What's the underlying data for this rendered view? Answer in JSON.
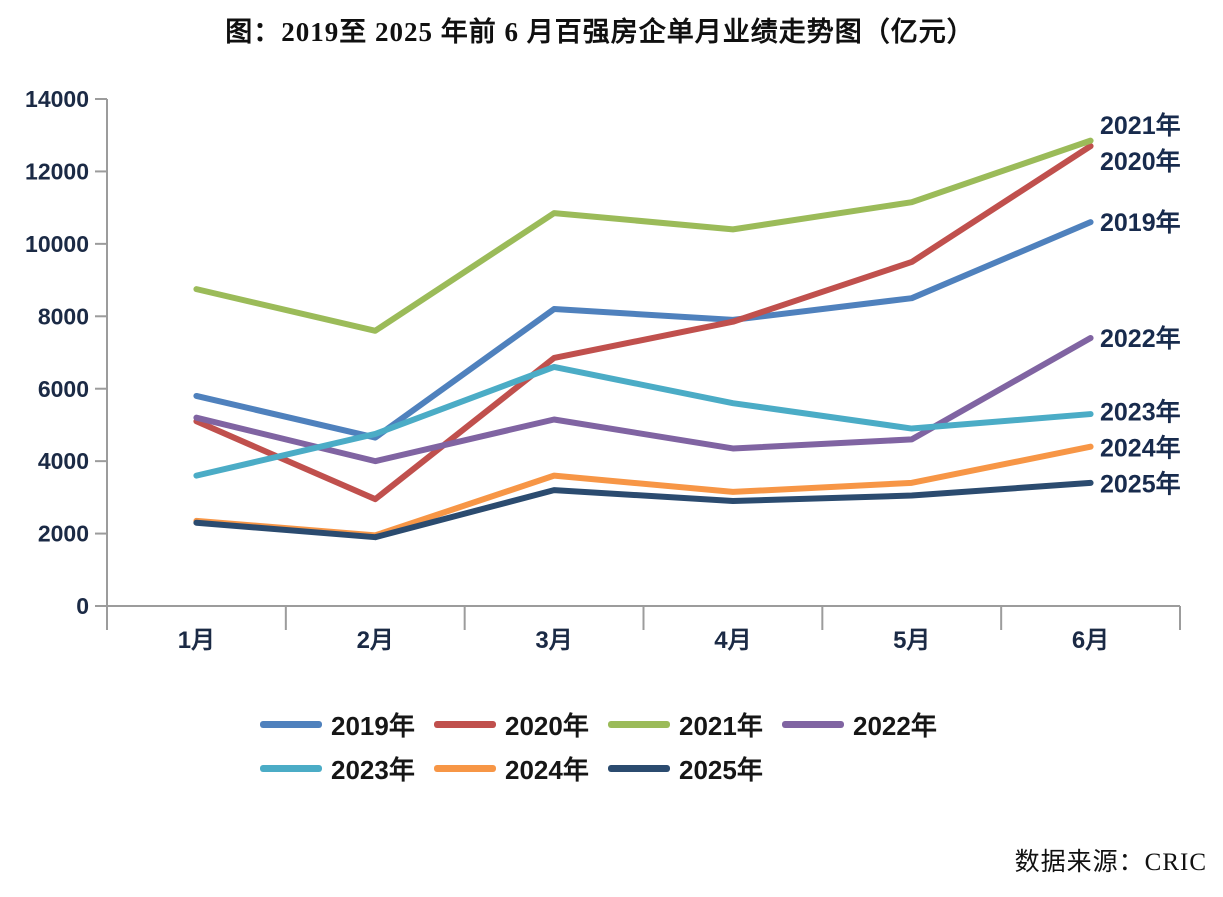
{
  "title": "图：2019至 2025 年前 6 月百强房企单月业绩走势图（亿元）",
  "source_note": "数据来源：CRIC",
  "chart_data": {
    "type": "line",
    "title": "图：2019至 2025 年前 6 月百强房企单月业绩走势图（亿元）",
    "xlabel": "",
    "ylabel": "",
    "categories": [
      "1月",
      "2月",
      "3月",
      "4月",
      "5月",
      "6月"
    ],
    "series": [
      {
        "name": "2019年",
        "color": "#4f81bd",
        "values": [
          5800,
          4650,
          8200,
          7900,
          8500,
          10600
        ]
      },
      {
        "name": "2020年",
        "color": "#c0504d",
        "values": [
          5100,
          2950,
          6850,
          7850,
          9500,
          12700
        ]
      },
      {
        "name": "2021年",
        "color": "#9bbb59",
        "values": [
          8750,
          7600,
          10850,
          10400,
          11150,
          12850
        ]
      },
      {
        "name": "2022年",
        "color": "#8064a2",
        "values": [
          5200,
          4000,
          5150,
          4350,
          4600,
          7400
        ]
      },
      {
        "name": "2023年",
        "color": "#4bacc6",
        "values": [
          3600,
          4750,
          6600,
          5600,
          4900,
          5300
        ]
      },
      {
        "name": "2024年",
        "color": "#f79646",
        "values": [
          2350,
          1950,
          3600,
          3150,
          3400,
          4400
        ]
      },
      {
        "name": "2025年",
        "color": "#2b4b6f",
        "values": [
          2300,
          1900,
          3200,
          2900,
          3050,
          3400
        ]
      }
    ],
    "ylim": [
      0,
      14000
    ],
    "yticks": [
      0,
      2000,
      4000,
      6000,
      8000,
      10000,
      12000,
      14000
    ],
    "grid": false,
    "legend_position": "bottom",
    "series_end_labels": [
      "2021年",
      "2020年",
      "2019年",
      "2022年",
      "2023年",
      "2024年",
      "2025年"
    ],
    "axis_color": "#9c9c9c",
    "tick_label_color": "#1b2a45",
    "end_label_color": "#182b4d"
  }
}
